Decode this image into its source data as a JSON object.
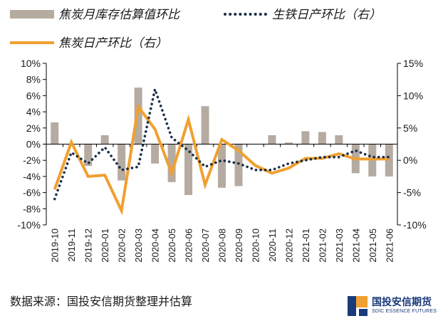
{
  "source_note": "数据来源：国投安信期货整理并估算",
  "logo": {
    "name_cn": "国投安信期货",
    "name_en": "SDIC ESSENCE FUTURES"
  },
  "colors": {
    "bar": "#b5aba1",
    "line_dotted": "#1b2f4a",
    "line_solid": "#f0a030",
    "axis": "#000000"
  },
  "chart_data": {
    "type": "bar",
    "categories": [
      "2019-10",
      "2019-11",
      "2019-12",
      "2020-01",
      "2020-02",
      "2020-03",
      "2020-04",
      "2020-05",
      "2020-06",
      "2020-07",
      "2020-08",
      "2020-09",
      "2020-10",
      "2020-11",
      "2020-12",
      "2021-01",
      "2021-02",
      "2021-03",
      "2021-04",
      "2021-05",
      "2021-06"
    ],
    "y_left": {
      "min": -10,
      "max": 10,
      "step": 2,
      "unit": "%"
    },
    "y_right": {
      "min": -10,
      "max": 15,
      "step": 5,
      "unit": "%"
    },
    "legend": [
      {
        "label": "焦炭月库存估算值环比",
        "style": "bar"
      },
      {
        "label": "生铁日产环比（右）",
        "style": "dotted"
      },
      {
        "label": "焦炭日产环比（右）",
        "style": "solid"
      }
    ],
    "series": [
      {
        "name": "焦炭月库存估算值环比",
        "type": "bar",
        "axis": "left",
        "values": [
          2.7,
          -0.1,
          -2.7,
          1.1,
          -4.5,
          7.0,
          -2.4,
          -4.7,
          -6.3,
          4.7,
          -5.4,
          -5.2,
          0.0,
          1.1,
          0.2,
          1.6,
          1.5,
          1.1,
          -3.6,
          -4.0,
          -4.0
        ]
      },
      {
        "name": "生铁日产环比（右）",
        "type": "line",
        "style": "dotted",
        "axis": "right",
        "values": [
          -6.0,
          1.2,
          -0.5,
          2.0,
          -1.5,
          -1.0,
          11.0,
          3.5,
          1.5,
          -1.0,
          0.0,
          -0.5,
          -1.5,
          -1.5,
          -0.5,
          0.0,
          0.5,
          0.5,
          1.5,
          0.5,
          0.5
        ]
      },
      {
        "name": "焦炭日产环比（右）",
        "type": "line",
        "style": "solid",
        "axis": "right",
        "values": [
          -4.5,
          2.8,
          -2.5,
          -2.3,
          -7.8,
          8.3,
          4.8,
          -2.0,
          6.3,
          -3.8,
          3.2,
          1.5,
          -0.8,
          -2.0,
          -1.2,
          0.3,
          0.3,
          1.0,
          0.2,
          0.2,
          0.2
        ]
      }
    ]
  }
}
